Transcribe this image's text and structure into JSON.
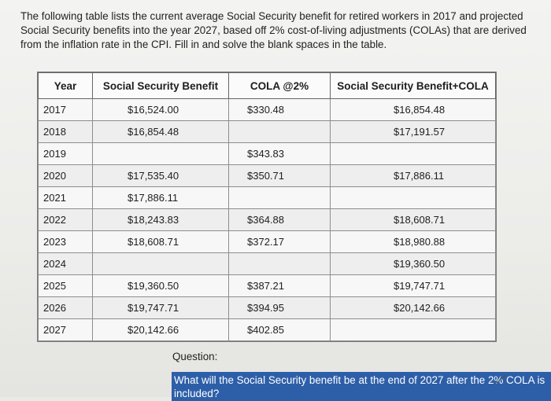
{
  "intro_text": "The following table lists the current average Social Security benefit for retired workers in 2017 and projected Social Security benefits into the year 2027, based off 2% cost-of-living adjustments (COLAs) that are derived from the inflation rate in the CPI. Fill in and solve the blank spaces in the table.",
  "table": {
    "headers": [
      "Year",
      "Social Security Benefit",
      "COLA @2%",
      "Social Security Benefit+COLA"
    ],
    "rows": [
      {
        "year": "2017",
        "benefit": "$16,524.00",
        "cola": "$330.48",
        "total": "$16,854.48"
      },
      {
        "year": "2018",
        "benefit": "$16,854.48",
        "cola": "",
        "total": "$17,191.57"
      },
      {
        "year": "2019",
        "benefit": "",
        "cola": "$343.83",
        "total": ""
      },
      {
        "year": "2020",
        "benefit": "$17,535.40",
        "cola": "$350.71",
        "total": "$17,886.11"
      },
      {
        "year": "2021",
        "benefit": "$17,886.11",
        "cola": "",
        "total": ""
      },
      {
        "year": "2022",
        "benefit": "$18,243.83",
        "cola": "$364.88",
        "total": "$18,608.71"
      },
      {
        "year": "2023",
        "benefit": "$18,608.71",
        "cola": "$372.17",
        "total": "$18,980.88"
      },
      {
        "year": "2024",
        "benefit": "",
        "cola": "",
        "total": "$19,360.50"
      },
      {
        "year": "2025",
        "benefit": "$19,360.50",
        "cola": "$387.21",
        "total": "$19,747.71"
      },
      {
        "year": "2026",
        "benefit": "$19,747.71",
        "cola": "$394.95",
        "total": "$20,142.66"
      },
      {
        "year": "2027",
        "benefit": "$20,142.66",
        "cola": "$402.85",
        "total": ""
      }
    ]
  },
  "question_label": "Question:",
  "question_text": "What will the Social Security benefit be at the end of 2027 after the 2% COLA is included?",
  "colors": {
    "highlight": "#2d5fa9"
  }
}
